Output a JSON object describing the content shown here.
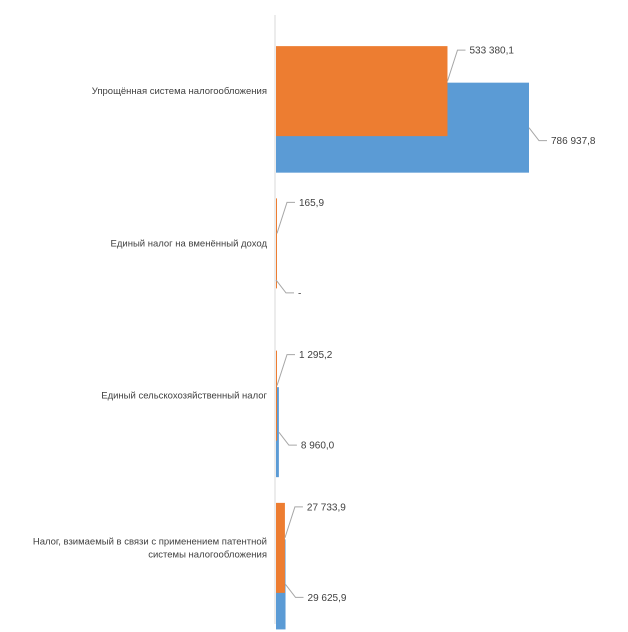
{
  "chart_data": {
    "type": "bar",
    "orientation": "horizontal",
    "categories": [
      "Упрощённая система налогообложения",
      "Единый налог на вменённый доход",
      "Единый сельскохозяйственный налог",
      "Налог, взимаемый в связи с применением патентной системы налогообложения"
    ],
    "category_label_lines": [
      [
        "Упрощённая система налогообложения"
      ],
      [
        "Единый налог на вменённый доход"
      ],
      [
        "Единый сельскохозяйственный налог"
      ],
      [
        "Налог, взимаемый в связи с применением патентной",
        "системы налогообложения"
      ]
    ],
    "series": [
      {
        "color": "#5b9bd5",
        "values": [
          786937.8,
          0,
          8960.0,
          29625.9
        ],
        "labels": [
          "786 937,8",
          "-",
          "8 960,0",
          "29 625,9"
        ]
      },
      {
        "color": "#ed7d31",
        "values": [
          533380.1,
          165.9,
          1295.2,
          27733.9
        ],
        "labels": [
          "533 380,1",
          "165,9",
          "1 295,2",
          "27 733,9"
        ]
      }
    ],
    "xlim": [
      0,
      1100000
    ],
    "grid": false,
    "legend": "none"
  }
}
